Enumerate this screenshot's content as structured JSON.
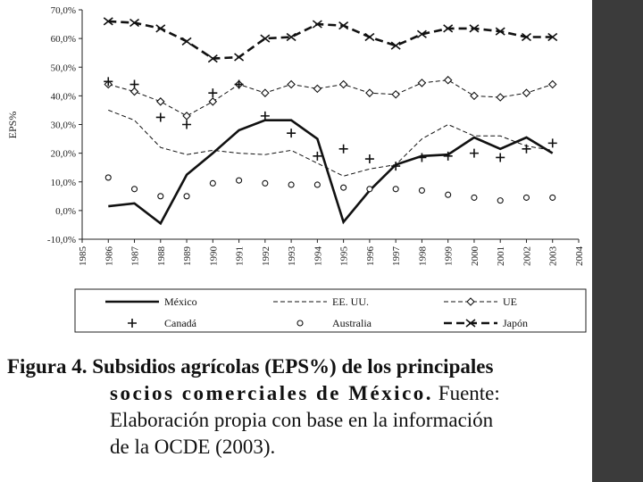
{
  "caption": {
    "label": "Figura 4.",
    "title_line1": "Subsidios agrícolas (EPS%) de los principales",
    "title_line2": "socios comerciales de México.",
    "source_word": "Fuente:",
    "source_line3": "Elaboración propia con base en la información",
    "source_line4": "de la OCDE (2003)."
  },
  "colors": {
    "series": "#111111",
    "side_band": "#3b3b3b"
  },
  "chart_data": {
    "type": "line",
    "ylabel": "EPS%",
    "xlabel": "",
    "ylim": [
      -10,
      70
    ],
    "yticks": [
      "-10,0%",
      "0,0%",
      "10,0%",
      "20,0%",
      "30,0%",
      "40,0%",
      "50,0%",
      "60,0%",
      "70,0%"
    ],
    "ytick_values": [
      -10,
      0,
      10,
      20,
      30,
      40,
      50,
      60,
      70
    ],
    "xlim": [
      1985,
      2004
    ],
    "xticks": [
      "1985",
      "1986",
      "1987",
      "1988",
      "1989",
      "1990",
      "1991",
      "1992",
      "1993",
      "1994",
      "1995",
      "1996",
      "1997",
      "1998",
      "1999",
      "2000",
      "2001",
      "2002",
      "2003",
      "2004"
    ],
    "x": [
      1986,
      1987,
      1988,
      1989,
      1990,
      1991,
      1992,
      1993,
      1994,
      1995,
      1996,
      1997,
      1998,
      1999,
      2000,
      2001,
      2002,
      2003
    ],
    "legend_position": "bottom",
    "series": [
      {
        "name": "México",
        "style": "solid",
        "marker": "none",
        "values": [
          1.5,
          2.5,
          -4.5,
          12.5,
          20,
          28,
          31.5,
          31.5,
          25,
          -4,
          7,
          16,
          19,
          19.5,
          25.5,
          21.5,
          25.5,
          20
        ]
      },
      {
        "name": "EE. UU.",
        "style": "dashed-thin",
        "marker": "none",
        "values": [
          35,
          31.5,
          22,
          19.5,
          21,
          20,
          19.5,
          21,
          16.5,
          12,
          14.5,
          16,
          25,
          30,
          26,
          26,
          22.5,
          21
        ]
      },
      {
        "name": "UE",
        "style": "dashed-thin",
        "marker": "diamond",
        "values": [
          44,
          41.5,
          38,
          33,
          38,
          44,
          41,
          44,
          42.5,
          44,
          41,
          40.5,
          44.5,
          45.5,
          40,
          39.5,
          41,
          44
        ]
      },
      {
        "name": "Canadá",
        "style": "none",
        "marker": "plus",
        "values": [
          45,
          44,
          32.5,
          30,
          41,
          44,
          33,
          27,
          19,
          21.5,
          18,
          15.5,
          18.5,
          19,
          20,
          18.5,
          21.5,
          23.5
        ]
      },
      {
        "name": "Australia",
        "style": "none",
        "marker": "circle",
        "values": [
          11.5,
          7.5,
          5,
          5,
          9.5,
          10.5,
          9.5,
          9,
          9,
          8,
          7.5,
          7.5,
          7,
          5.5,
          4.5,
          3.5,
          4.5,
          4.5
        ]
      },
      {
        "name": "Japón",
        "style": "dashed-thick",
        "marker": "x",
        "values": [
          66,
          65.5,
          63.5,
          59,
          53,
          53.5,
          60,
          60.5,
          65,
          64.5,
          60.5,
          57.5,
          61.5,
          63.5,
          63.5,
          62.5,
          60.5,
          60.5
        ]
      }
    ]
  }
}
